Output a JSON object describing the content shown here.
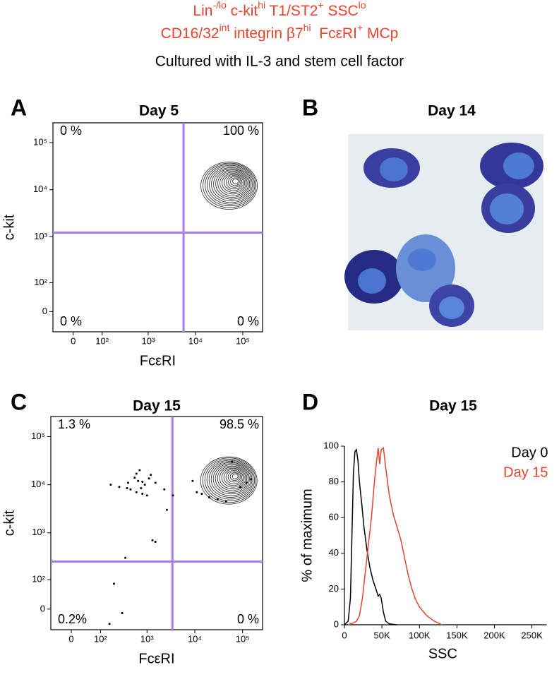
{
  "header": {
    "line1": [
      {
        "text": "Lin"
      },
      {
        "sup": "-/lo"
      },
      {
        "text": " c-kit"
      },
      {
        "sup": "hi"
      },
      {
        "text": " T1/ST2"
      },
      {
        "sup": "+"
      },
      {
        "text": " SSC"
      },
      {
        "sup": "lo"
      }
    ],
    "line2": [
      {
        "text": "CD16/32"
      },
      {
        "sup": "int"
      },
      {
        "text": " integrin β7"
      },
      {
        "sup": "hi"
      },
      {
        "text": "  FcεRI"
      },
      {
        "sup": "+"
      },
      {
        "text": " MCp"
      }
    ],
    "line3": "Cultured with IL-3 and stem cell factor"
  },
  "chart_data": [
    {
      "type": "contour",
      "panel_label": "A",
      "title": "Day 5",
      "x_label": "FcεRI",
      "y_label": "c-kit",
      "xlim": [
        -60,
        262144
      ],
      "ylim": [
        -60,
        262144
      ],
      "xticks": [
        0,
        {
          "value": 100,
          "label": "10²"
        },
        {
          "value": 1000,
          "label": "10³"
        },
        {
          "value": 10000,
          "label": "10⁴"
        },
        {
          "value": 100000,
          "label": "10⁵"
        }
      ],
      "yticks": [
        0,
        {
          "value": 100,
          "label": "10²"
        },
        {
          "value": 1000,
          "label": "10³"
        },
        {
          "value": 10000,
          "label": "10⁴"
        },
        {
          "value": 100000,
          "label": "10⁵"
        }
      ],
      "x_gate": 5600,
      "y_gate": 1230,
      "gate_color": "#a57ee8",
      "quadrant_labels": [
        "0 %",
        "100 %",
        "0 %",
        "0 %"
      ]
    },
    {
      "type": "image",
      "panel_label": "B",
      "title": "Day 14"
    },
    {
      "type": "contour",
      "panel_label": "C",
      "title": "Day 15",
      "x_label": "FcεRI",
      "y_label": "c-kit",
      "xlim": [
        -60,
        262144
      ],
      "ylim": [
        -60,
        262144
      ],
      "xticks": [
        0,
        {
          "value": 100,
          "label": "10²"
        },
        {
          "value": 1000,
          "label": "10³"
        },
        {
          "value": 10000,
          "label": "10⁴"
        },
        {
          "value": 100000,
          "label": "10⁵"
        }
      ],
      "yticks": [
        0,
        {
          "value": 100,
          "label": "10²"
        },
        {
          "value": 1000,
          "label": "10³"
        },
        {
          "value": 10000,
          "label": "10⁴"
        },
        {
          "value": 100000,
          "label": "10⁵"
        }
      ],
      "x_gate": 3400,
      "y_gate": 250,
      "gate_color": "#a57ee8",
      "quadrant_labels": [
        "1.3 %",
        "98.5 %",
        "0.2%",
        "0 %"
      ],
      "x": [
        170,
        260,
        400,
        550,
        650,
        750,
        800,
        900,
        1100,
        600,
        450,
        800,
        1200,
        600,
        700,
        380,
        1000,
        1500,
        3500,
        2300,
        2600,
        1300,
        1500,
        350,
        200,
        300,
        160,
        9000,
        11000,
        14000,
        20000,
        30000,
        45000,
        90000,
        120000,
        60000,
        150000
      ],
      "values": [
        10000,
        9000,
        11000,
        14000,
        12000,
        8500,
        11500,
        10000,
        13500,
        7000,
        8000,
        6500,
        16000,
        17000,
        20000,
        8500,
        6000,
        11000,
        6000,
        8000,
        3000,
        700,
        650,
        300,
        80,
        -10,
        -40,
        12000,
        7000,
        6500,
        5500,
        5000,
        4500,
        9000,
        11000,
        30000,
        13000
      ]
    },
    {
      "type": "line",
      "panel_label": "D",
      "title": "Day 15",
      "x_label": "SSC",
      "y_label": "% of maximum",
      "xlim": [
        0,
        262144
      ],
      "ylim": [
        0,
        100
      ],
      "xticks": [
        0,
        {
          "value": 50000,
          "label": "50K"
        },
        {
          "value": 100000,
          "label": "100K"
        },
        {
          "value": 150000,
          "label": "150K"
        },
        {
          "value": 200000,
          "label": "200K"
        },
        {
          "value": 250000,
          "label": "250K"
        }
      ],
      "yticks": [
        0,
        20,
        40,
        60,
        80,
        100
      ],
      "legend": "top-right",
      "series": [
        {
          "name": "Day 0",
          "color": "#000000",
          "x": [
            0,
            5000,
            8000,
            10000,
            12000,
            14000,
            16000,
            18000,
            20000,
            23000,
            26000,
            30000,
            34000,
            38000,
            42000,
            45000,
            47000,
            49000,
            52000,
            55000,
            60000,
            70000
          ],
          "values": [
            0,
            2,
            15,
            50,
            85,
            97,
            98,
            92,
            80,
            68,
            55,
            42,
            32,
            25,
            20,
            16,
            17,
            15,
            7,
            2,
            0.5,
            0
          ]
        },
        {
          "name": "Day 15",
          "color": "#e8432e",
          "x": [
            5000,
            12000,
            16000,
            20000,
            24000,
            28000,
            32000,
            36000,
            40000,
            43000,
            45000,
            47000,
            49000,
            52000,
            55000,
            60000,
            65000,
            70000,
            75000,
            80000,
            85000,
            90000,
            95000,
            100000,
            110000,
            120000,
            130000
          ],
          "values": [
            0,
            1,
            2,
            5,
            15,
            30,
            45,
            60,
            80,
            92,
            99,
            90,
            98,
            99,
            88,
            72,
            62,
            55,
            48,
            38,
            28,
            20,
            14,
            10,
            5,
            2,
            0
          ]
        }
      ]
    }
  ]
}
